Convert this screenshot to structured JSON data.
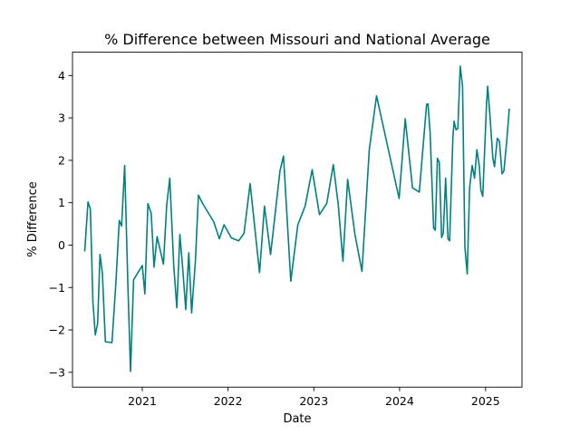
{
  "chart_data": {
    "type": "line",
    "title": "% Difference between Missouri and National Average",
    "xlabel": "Date",
    "ylabel": "% Difference",
    "x_ticks": [
      "2021",
      "2022",
      "2023",
      "2024",
      "2025"
    ],
    "y_ticks": [
      "−3",
      "−2",
      "−1",
      "0",
      "1",
      "2",
      "3",
      "4"
    ],
    "xlim": [
      "2020-03-10",
      "2025-06-05"
    ],
    "ylim": [
      -3.35,
      4.55
    ],
    "grid": false,
    "line_color": "#008080",
    "series": [
      {
        "points": [
          [
            "2020-05-01",
            -0.15
          ],
          [
            "2020-05-15",
            1.02
          ],
          [
            "2020-05-25",
            0.85
          ],
          [
            "2020-06-05",
            -1.35
          ],
          [
            "2020-06-15",
            -2.12
          ],
          [
            "2020-06-25",
            -1.85
          ],
          [
            "2020-07-05",
            -0.22
          ],
          [
            "2020-07-15",
            -0.65
          ],
          [
            "2020-07-28",
            -2.28
          ],
          [
            "2020-08-25",
            -2.3
          ],
          [
            "2020-09-10",
            -0.95
          ],
          [
            "2020-09-25",
            0.58
          ],
          [
            "2020-10-05",
            0.45
          ],
          [
            "2020-10-18",
            1.88
          ],
          [
            "2020-11-01",
            -1.0
          ],
          [
            "2020-11-12",
            -2.98
          ],
          [
            "2020-11-25",
            -0.82
          ],
          [
            "2021-01-01",
            -0.48
          ],
          [
            "2021-01-12",
            -1.15
          ],
          [
            "2021-01-25",
            0.98
          ],
          [
            "2021-02-08",
            0.75
          ],
          [
            "2021-02-20",
            -0.52
          ],
          [
            "2021-03-05",
            0.2
          ],
          [
            "2021-04-01",
            -0.45
          ],
          [
            "2021-04-15",
            0.95
          ],
          [
            "2021-04-28",
            1.58
          ],
          [
            "2021-05-15",
            -0.5
          ],
          [
            "2021-05-28",
            -1.48
          ],
          [
            "2021-06-10",
            0.25
          ],
          [
            "2021-06-22",
            -0.55
          ],
          [
            "2021-07-05",
            -1.52
          ],
          [
            "2021-07-18",
            -0.18
          ],
          [
            "2021-07-30",
            -1.6
          ],
          [
            "2021-08-15",
            -0.38
          ],
          [
            "2021-08-28",
            1.18
          ],
          [
            "2021-09-15",
            0.98
          ],
          [
            "2021-11-01",
            0.55
          ],
          [
            "2021-11-25",
            0.15
          ],
          [
            "2021-12-15",
            0.48
          ],
          [
            "2022-01-15",
            0.17
          ],
          [
            "2022-02-15",
            0.1
          ],
          [
            "2022-03-10",
            0.28
          ],
          [
            "2022-04-05",
            1.45
          ],
          [
            "2022-05-15",
            -0.65
          ],
          [
            "2022-06-05",
            0.92
          ],
          [
            "2022-07-01",
            -0.22
          ],
          [
            "2022-08-10",
            1.75
          ],
          [
            "2022-08-25",
            2.1
          ],
          [
            "2022-09-25",
            -0.85
          ],
          [
            "2022-10-25",
            0.48
          ],
          [
            "2022-11-25",
            0.92
          ],
          [
            "2022-12-25",
            1.78
          ],
          [
            "2023-01-25",
            0.72
          ],
          [
            "2023-02-25",
            0.98
          ],
          [
            "2023-03-25",
            1.9
          ],
          [
            "2023-04-15",
            0.95
          ],
          [
            "2023-05-05",
            -0.38
          ],
          [
            "2023-05-25",
            1.55
          ],
          [
            "2023-06-25",
            0.25
          ],
          [
            "2023-07-25",
            -0.62
          ],
          [
            "2023-08-25",
            2.25
          ],
          [
            "2023-09-25",
            3.52
          ],
          [
            "2023-12-30",
            1.1
          ],
          [
            "2024-01-25",
            2.98
          ],
          [
            "2024-02-25",
            1.35
          ],
          [
            "2024-03-25",
            1.25
          ],
          [
            "2024-04-25",
            3.32
          ],
          [
            "2024-05-01",
            3.33
          ],
          [
            "2024-05-10",
            2.65
          ],
          [
            "2024-05-25",
            0.4
          ],
          [
            "2024-06-01",
            0.35
          ],
          [
            "2024-06-10",
            2.05
          ],
          [
            "2024-06-18",
            1.95
          ],
          [
            "2024-06-28",
            0.18
          ],
          [
            "2024-07-05",
            0.28
          ],
          [
            "2024-07-15",
            1.58
          ],
          [
            "2024-07-25",
            0.15
          ],
          [
            "2024-08-01",
            0.1
          ],
          [
            "2024-08-15",
            2.55
          ],
          [
            "2024-08-20",
            2.92
          ],
          [
            "2024-08-28",
            2.72
          ],
          [
            "2024-09-05",
            2.75
          ],
          [
            "2024-09-15",
            4.22
          ],
          [
            "2024-09-25",
            3.75
          ],
          [
            "2024-10-05",
            -0.05
          ],
          [
            "2024-10-15",
            -0.68
          ],
          [
            "2024-10-25",
            1.35
          ],
          [
            "2024-11-05",
            1.88
          ],
          [
            "2024-11-15",
            1.58
          ],
          [
            "2024-11-25",
            2.25
          ],
          [
            "2024-12-05",
            1.88
          ],
          [
            "2024-12-12",
            1.3
          ],
          [
            "2024-12-20",
            1.15
          ],
          [
            "2025-01-05",
            3.32
          ],
          [
            "2025-01-10",
            3.75
          ],
          [
            "2025-01-20",
            3.02
          ],
          [
            "2025-02-01",
            2.05
          ],
          [
            "2025-02-08",
            1.85
          ],
          [
            "2025-02-20",
            2.52
          ],
          [
            "2025-03-01",
            2.45
          ],
          [
            "2025-03-12",
            1.68
          ],
          [
            "2025-03-20",
            1.75
          ],
          [
            "2025-04-01",
            2.45
          ],
          [
            "2025-04-12",
            3.22
          ]
        ]
      }
    ]
  }
}
